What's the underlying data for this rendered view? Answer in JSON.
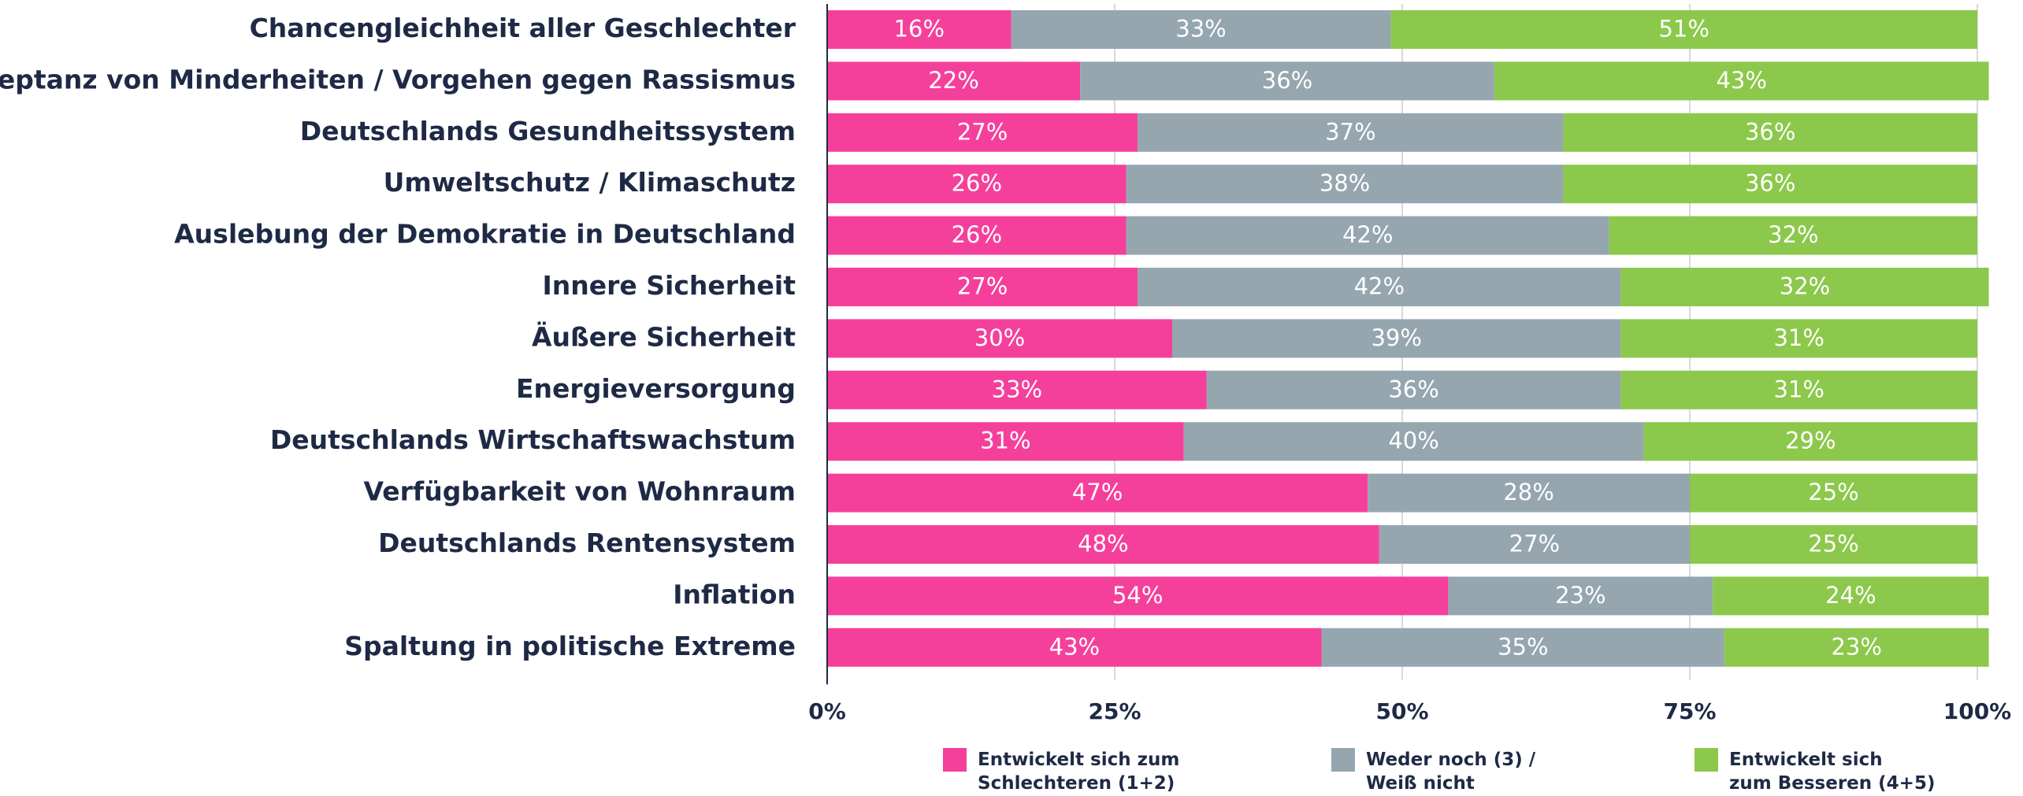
{
  "chart_data": {
    "type": "stacked_barh",
    "categories": [
      "Chancengleichheit aller Geschlechter",
      "Akzeptanz von Minderheiten / Vorgehen gegen Rassismus",
      "Deutschlands Gesundheitssystem",
      "Umweltschutz / Klimaschutz",
      "Auslebung der Demokratie in Deutschland",
      "Innere Sicherheit",
      "Äußere Sicherheit",
      "Energieversorgung",
      "Deutschlands Wirtschaftswachstum",
      "Verfügbarkeit von Wohnraum",
      "Deutschlands Rentensystem",
      "Inflation",
      "Spaltung in politische Extreme"
    ],
    "series": [
      {
        "name": "Entwickelt sich zum\nSchlechteren (1+2)",
        "color": "#f5409b",
        "values": [
          16,
          22,
          27,
          26,
          26,
          27,
          30,
          33,
          31,
          47,
          48,
          54,
          43
        ],
        "value_labels": [
          "16%",
          "22%",
          "27%",
          "26%",
          "26%",
          "27%",
          "30%",
          "33%",
          "31%",
          "47%",
          "48%",
          "54%",
          "43%"
        ]
      },
      {
        "name": "Weder noch (3) /\nWeiß nicht",
        "color": "#95a6af",
        "values": [
          33,
          36,
          37,
          38,
          42,
          42,
          39,
          36,
          40,
          28,
          27,
          23,
          35
        ],
        "value_labels": [
          "33%",
          "36%",
          "37%",
          "38%",
          "42%",
          "42%",
          "39%",
          "36%",
          "40%",
          "28%",
          "27%",
          "23%",
          "35%"
        ]
      },
      {
        "name": "Entwickelt sich\nzum Besseren (4+5)",
        "color": "#8cc84b",
        "values": [
          51,
          43,
          36,
          36,
          32,
          32,
          31,
          31,
          29,
          25,
          25,
          24,
          23
        ],
        "value_labels": [
          "51%",
          "43%",
          "36%",
          "36%",
          "32%",
          "32%",
          "31%",
          "31%",
          "29%",
          "25%",
          "25%",
          "24%",
          "23%"
        ]
      }
    ],
    "xlim": [
      0,
      100
    ],
    "xticks": [
      {
        "value": 0,
        "label": "0%"
      },
      {
        "value": 25,
        "label": "25%"
      },
      {
        "value": 50,
        "label": "50%"
      },
      {
        "value": 75,
        "label": "75%"
      },
      {
        "value": 100,
        "label": "100%"
      }
    ],
    "grid": true,
    "legend": "bottom"
  }
}
